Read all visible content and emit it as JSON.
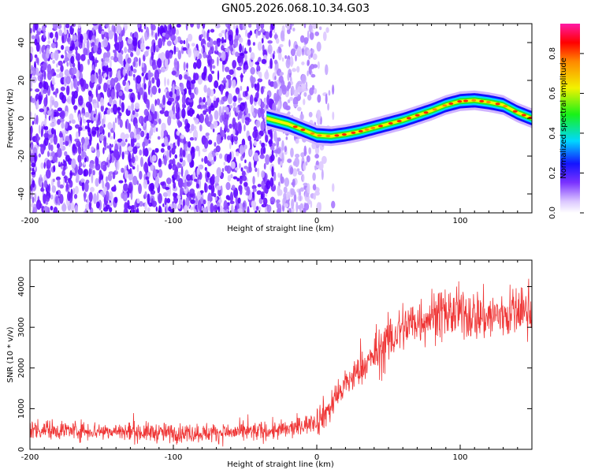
{
  "title": "GN05.2026.068.10.34.G03",
  "chart_data": [
    {
      "type": "heatmap",
      "name": "spectrogram",
      "xlabel": "Height of straight line (km)",
      "ylabel": "Frequency (Hz)",
      "xlim": [
        -200,
        150
      ],
      "ylim": [
        -50,
        50
      ],
      "xticks": [
        -200,
        -100,
        0,
        100
      ],
      "yticks": [
        -40,
        -20,
        0,
        20,
        40
      ],
      "colorbar": {
        "label": "Normalized spectral amplitude",
        "range": [
          0,
          0.95
        ],
        "ticks": [
          0.0,
          0.2,
          0.4,
          0.6,
          0.8
        ]
      },
      "signal_ridge": {
        "description_points_x_km": [
          -35,
          -20,
          -10,
          0,
          10,
          20,
          30,
          40,
          50,
          60,
          70,
          80,
          90,
          100,
          110,
          120,
          130,
          140,
          150
        ],
        "description_points_freq_hz": [
          0,
          -3,
          -6,
          -9,
          -9.5,
          -8.5,
          -7,
          -5,
          -3,
          -1,
          1.5,
          4,
          7,
          9,
          9.5,
          8.5,
          7,
          3,
          0
        ]
      },
      "noise_region_x_km": [
        -200,
        5
      ]
    },
    {
      "type": "line",
      "name": "snr",
      "xlabel": "Height of straight line (km)",
      "ylabel": "SNR (10 * v/v)",
      "xlim": [
        -200,
        150
      ],
      "ylim": [
        0,
        4650
      ],
      "xticks": [
        -200,
        -100,
        0,
        100
      ],
      "yticks": [
        0,
        1000,
        2000,
        3000,
        4000
      ],
      "trend_x_km": [
        -200,
        -150,
        -100,
        -50,
        -20,
        0,
        10,
        20,
        40,
        60,
        80,
        100,
        120,
        150
      ],
      "trend_snr": [
        500,
        450,
        400,
        420,
        480,
        700,
        1050,
        1600,
        2300,
        3000,
        3300,
        3350,
        3250,
        3450
      ],
      "series_color": "#ef3535"
    }
  ],
  "colors": {
    "noise_purple": "#7020ff",
    "line_red": "#ef3535"
  }
}
